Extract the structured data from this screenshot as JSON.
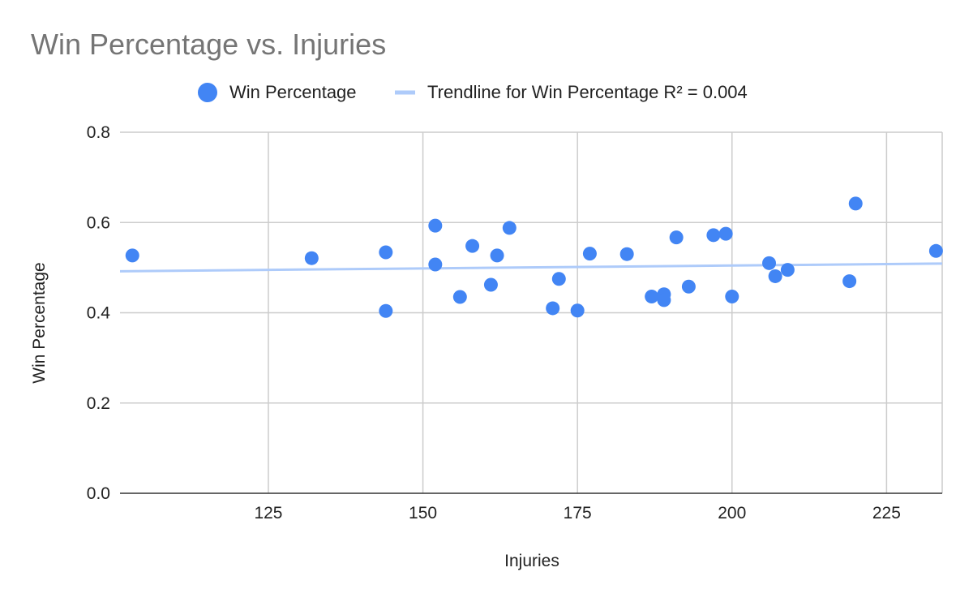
{
  "chart_data": {
    "type": "scatter",
    "title": "Win Percentage vs. Injuries",
    "xlabel": "Injuries",
    "ylabel": "Win Percentage",
    "xlim": [
      101,
      234
    ],
    "ylim": [
      0,
      0.8
    ],
    "x_ticks": [
      125,
      150,
      175,
      200,
      225
    ],
    "x_tick_labels": [
      "125",
      "150",
      "175",
      "200",
      "225"
    ],
    "y_ticks": [
      0,
      0.2,
      0.4,
      0.6,
      0.8
    ],
    "y_tick_labels": [
      "0.0",
      "0.2",
      "0.4",
      "0.6",
      "0.8"
    ],
    "grid": true,
    "legend_position": "top",
    "series": [
      {
        "name": "Win Percentage",
        "color": "#4285f4",
        "points": [
          {
            "x": 103,
            "y": 0.527
          },
          {
            "x": 132,
            "y": 0.521
          },
          {
            "x": 144,
            "y": 0.534
          },
          {
            "x": 144,
            "y": 0.404
          },
          {
            "x": 152,
            "y": 0.593
          },
          {
            "x": 152,
            "y": 0.507
          },
          {
            "x": 156,
            "y": 0.435
          },
          {
            "x": 158,
            "y": 0.548
          },
          {
            "x": 161,
            "y": 0.462
          },
          {
            "x": 162,
            "y": 0.527
          },
          {
            "x": 164,
            "y": 0.588
          },
          {
            "x": 171,
            "y": 0.41
          },
          {
            "x": 172,
            "y": 0.475
          },
          {
            "x": 175,
            "y": 0.405
          },
          {
            "x": 177,
            "y": 0.531
          },
          {
            "x": 183,
            "y": 0.53
          },
          {
            "x": 187,
            "y": 0.436
          },
          {
            "x": 189,
            "y": 0.441
          },
          {
            "x": 189,
            "y": 0.428
          },
          {
            "x": 191,
            "y": 0.567
          },
          {
            "x": 193,
            "y": 0.458
          },
          {
            "x": 197,
            "y": 0.572
          },
          {
            "x": 199,
            "y": 0.575
          },
          {
            "x": 200,
            "y": 0.436
          },
          {
            "x": 206,
            "y": 0.51
          },
          {
            "x": 207,
            "y": 0.481
          },
          {
            "x": 209,
            "y": 0.495
          },
          {
            "x": 219,
            "y": 0.47
          },
          {
            "x": 220,
            "y": 0.642
          },
          {
            "x": 233,
            "y": 0.537
          }
        ]
      }
    ],
    "trendline": {
      "name": "Trendline for Win Percentage R² = 0.004",
      "color": "#aecbfa",
      "y_at_xmin": 0.492,
      "y_at_xmax": 0.509
    }
  }
}
